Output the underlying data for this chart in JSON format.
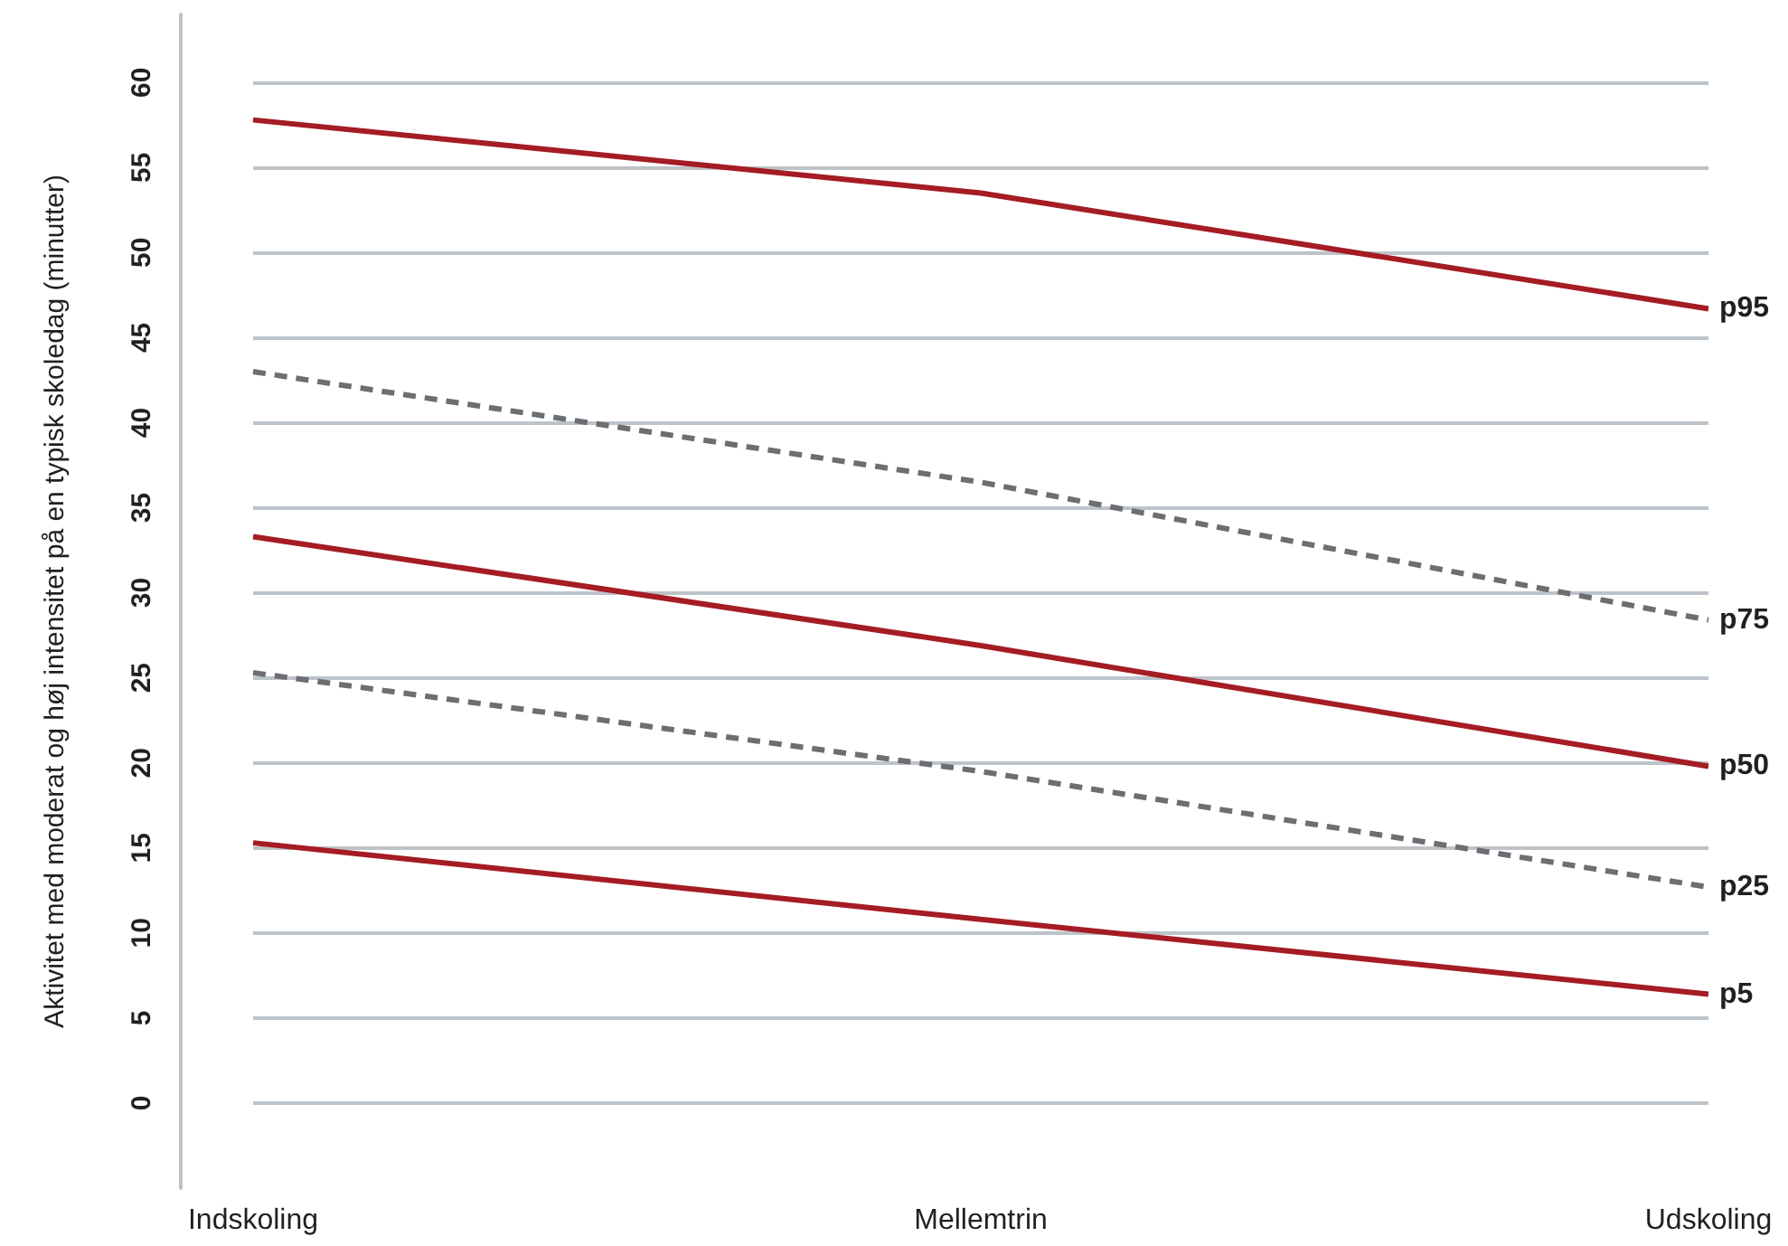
{
  "chart_data": {
    "type": "line",
    "ylabel": "Aktivitet med moderat og høj intensitet på en typisk skoledag (minutter)",
    "categories": [
      "Indskoling",
      "Mellemtrin",
      "Udskoling"
    ],
    "series": [
      {
        "name": "p95",
        "color": "#a51c24",
        "line_style": "solid",
        "values": [
          57.8,
          53.5,
          46.7
        ]
      },
      {
        "name": "p75",
        "color": "#6d6e71",
        "line_style": "dashed",
        "values": [
          43,
          36.5,
          28.4
        ]
      },
      {
        "name": "p50",
        "color": "#a51c24",
        "line_style": "solid",
        "values": [
          33.3,
          26.9,
          19.8
        ]
      },
      {
        "name": "p25",
        "color": "#6d6e71",
        "line_style": "dashed",
        "values": [
          25.3,
          19.5,
          12.7
        ]
      },
      {
        "name": "p5",
        "color": "#a51c24",
        "line_style": "solid",
        "values": [
          15.3,
          10.8,
          6.4
        ]
      }
    ],
    "ylim": [
      -5,
      64
    ],
    "yticks": [
      0,
      5,
      10,
      15,
      20,
      25,
      30,
      35,
      40,
      45,
      50,
      55,
      60
    ],
    "grid": "y",
    "marker": "none"
  }
}
